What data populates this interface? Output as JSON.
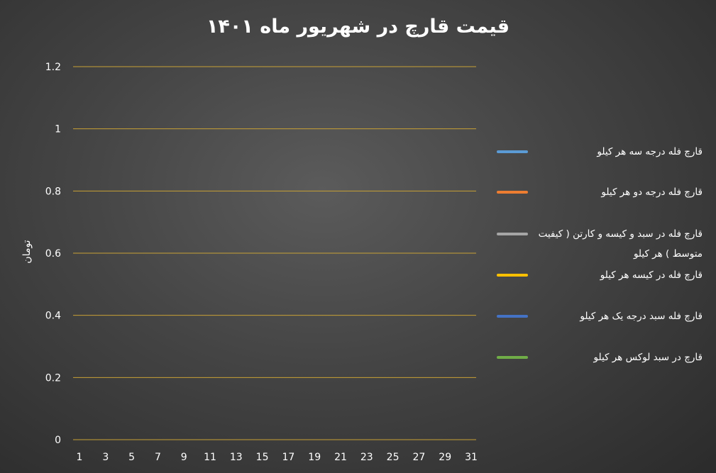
{
  "chart_data": {
    "type": "line",
    "title": "قیمت قارچ در شهریور ماه ۱۴۰۱",
    "ylabel": "تومان",
    "xlabel": "",
    "ylim": [
      0,
      1.2
    ],
    "y_ticks": [
      "0",
      "0.2",
      "0.4",
      "0.6",
      "0.8",
      "1",
      "1.2"
    ],
    "x_tick_labels": [
      "1",
      "3",
      "5",
      "7",
      "9",
      "11",
      "13",
      "15",
      "17",
      "19",
      "21",
      "23",
      "25",
      "27",
      "29",
      "31"
    ],
    "grid": true,
    "legend_position": "right",
    "series": [
      {
        "name": "قارچ فله درجه سه هر کیلو",
        "color": "#5b9bd5",
        "values": []
      },
      {
        "name": "قارچ فله درجه دو هر کیلو",
        "color": "#ed7d31",
        "values": []
      },
      {
        "name": "قارچ فله در سبد و کیسه و کارتن ( کیفیت متوسط ) هر کیلو",
        "color": "#a5a5a5",
        "values": []
      },
      {
        "name": "قارچ فله در کیسه هر کیلو",
        "color": "#ffc000",
        "values": []
      },
      {
        "name": "قارچ فله سبد درجه یک هر کیلو",
        "color": "#4472c4",
        "values": []
      },
      {
        "name": "قارچ در سبد لوکس هر کیلو",
        "color": "#70ad47",
        "values": []
      }
    ]
  },
  "colors": {
    "gridline": "#c8a135",
    "text": "#ffffff"
  }
}
